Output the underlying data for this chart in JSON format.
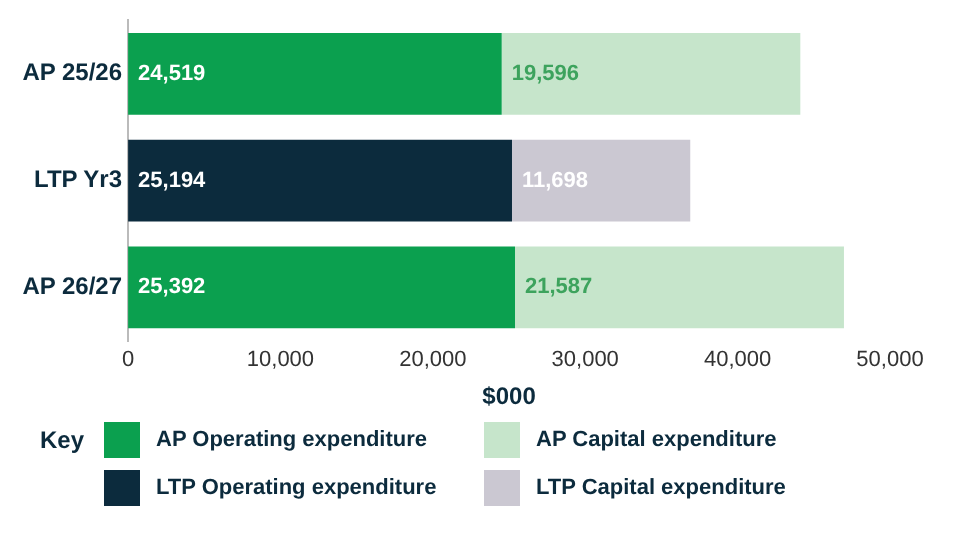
{
  "chart_data": {
    "type": "bar",
    "orientation": "horizontal",
    "stacked": true,
    "categories": [
      "AP 25/26",
      "LTP Yr3",
      "AP 26/27"
    ],
    "series": [
      {
        "name": "AP Operating expenditure",
        "color": "#0ba04f",
        "values": [
          24519,
          null,
          25392
        ],
        "value_labels": [
          "24,519",
          null,
          "25,392"
        ]
      },
      {
        "name": "LTP Operating expenditure",
        "color": "#0c2b3d",
        "values": [
          null,
          25194,
          null
        ],
        "value_labels": [
          null,
          "25,194",
          null
        ]
      },
      {
        "name": "AP Capital expenditure",
        "color": "#c6e5cb",
        "values": [
          19596,
          null,
          21587
        ],
        "value_labels": [
          "19,596",
          null,
          "21,587"
        ]
      },
      {
        "name": "LTP Capital expenditure",
        "color": "#cbc8d2",
        "values": [
          null,
          11698,
          null
        ],
        "value_labels": [
          null,
          "11,698",
          null
        ]
      }
    ],
    "xlim": [
      0,
      50000
    ],
    "xticks": [
      0,
      {
        "value": 10000,
        "label": "10,000"
      },
      {
        "value": 20000,
        "label": "20,000"
      },
      {
        "value": 30000,
        "label": "30,000"
      },
      {
        "value": 40000,
        "label": "40,000"
      },
      {
        "value": 50000,
        "label": "50,000"
      }
    ],
    "xlabel": "$000",
    "legend": "bottom",
    "legend_title": "Key",
    "grid": false
  }
}
